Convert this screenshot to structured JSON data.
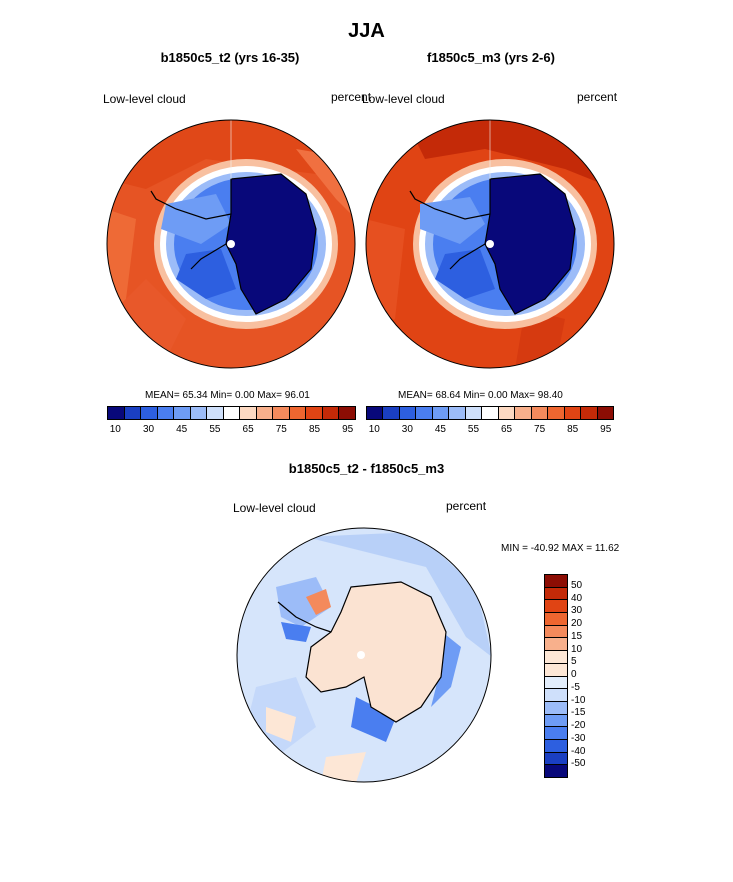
{
  "figure": {
    "season_title": "JJA",
    "panel_left": {
      "title": "b1850c5_t2 (yrs 16-35)",
      "left_label": "Low-level cloud",
      "right_label": "percent",
      "stats": "MEAN=  65.34  Min=   0.00  Max=  96.01"
    },
    "panel_right": {
      "title": "f1850c5_m3 (yrs 2-6)",
      "left_label": "Low-level cloud",
      "right_label": "percent",
      "stats": "MEAN=  68.64  Min=   0.00  Max=  98.40"
    },
    "panel_diff": {
      "title": "b1850c5_t2 - f1850c5_m3",
      "left_label": "Low-level cloud",
      "right_label": "percent",
      "stats": "MIN = -40.92 MAX =  11.62"
    },
    "colorbar_main": {
      "colors": [
        "#08087a",
        "#1a3fc2",
        "#2d5fe0",
        "#4a7ef0",
        "#6e9cf5",
        "#9cbcf8",
        "#cfe0fb",
        "#ffffff",
        "#fcd9c2",
        "#f8b08c",
        "#f48a5c",
        "#ee6630",
        "#e04414",
        "#c42a08",
        "#8c0d04"
      ],
      "tick_labels": [
        "10",
        "30",
        "45",
        "55",
        "65",
        "75",
        "85",
        "95"
      ]
    },
    "colorbar_diff": {
      "colors": [
        "#8c0d04",
        "#c42a08",
        "#e04414",
        "#ee6630",
        "#f48a5c",
        "#f8b08c",
        "#fde7d6",
        "#fde7d6",
        "#e3eefc",
        "#cfe0fb",
        "#9cbcf8",
        "#6e9cf5",
        "#4a7ef0",
        "#2d5fe0",
        "#1a3fc2",
        "#08087a"
      ],
      "tick_labels": [
        "50",
        "40",
        "30",
        "20",
        "15",
        "10",
        "5",
        "0",
        "-5",
        "-10",
        "-15",
        "-20",
        "-30",
        "-40",
        "-50"
      ]
    }
  }
}
